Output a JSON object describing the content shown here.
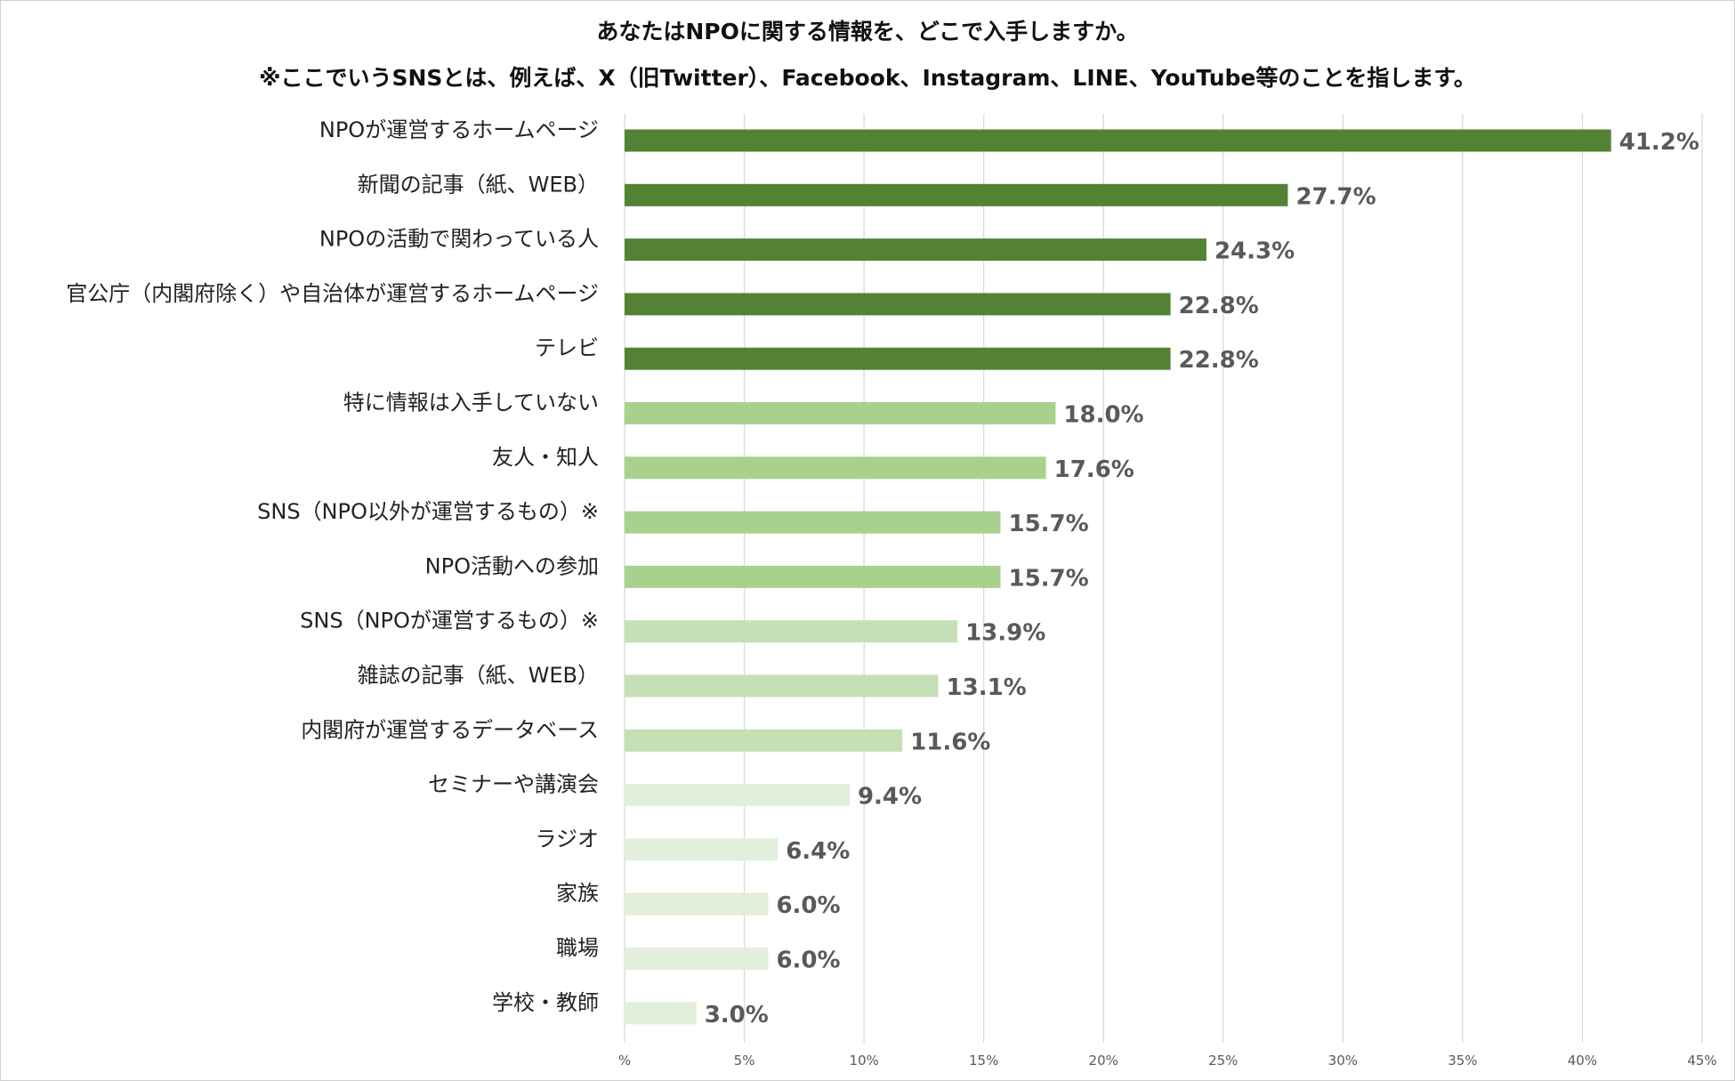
{
  "chart_data": {
    "type": "bar",
    "orientation": "horizontal",
    "title": "あなたはNPOに関する情報を、どこで入手しますか。",
    "subtitle": "※ここでいうSNSとは、例えば、X（旧Twitter）、Facebook、Instagram、LINE、YouTube等のことを指します。",
    "categories": [
      "NPOが運営するホームページ",
      "新聞の記事（紙、WEB）",
      "NPOの活動で関わっている人",
      "官公庁（内閣府除く）や自治体が運営するホームページ",
      "テレビ",
      "特に情報は入手していない",
      "友人・知人",
      "SNS（NPO以外が運営するもの）※",
      "NPO活動への参加",
      "SNS（NPOが運営するもの）※",
      "雑誌の記事（紙、WEB）",
      "内閣府が運営するデータベース",
      "セミナーや講演会",
      "ラジオ",
      "家族",
      "職場",
      "学校・教師"
    ],
    "values": [
      41.2,
      27.7,
      24.3,
      22.8,
      22.8,
      18.0,
      17.6,
      15.7,
      15.7,
      13.9,
      13.1,
      11.6,
      9.4,
      6.4,
      6.0,
      6.0,
      3.0
    ],
    "value_labels": [
      "41.2%",
      "27.7%",
      "24.3%",
      "22.8%",
      "22.8%",
      "18.0%",
      "17.6%",
      "15.7%",
      "15.7%",
      "13.9%",
      "13.1%",
      "11.6%",
      "9.4%",
      "6.4%",
      "6.0%",
      "6.0%",
      "3.0%"
    ],
    "bar_colors": [
      "#548235",
      "#548235",
      "#548235",
      "#548235",
      "#548235",
      "#a9d18e",
      "#a9d18e",
      "#a9d18e",
      "#a9d18e",
      "#c5e0b4",
      "#c5e0b4",
      "#c5e0b4",
      "#e2efda",
      "#e2efda",
      "#e2efda",
      "#e2efda",
      "#e2efda"
    ],
    "xticks": [
      0,
      5,
      10,
      15,
      20,
      25,
      30,
      35,
      40,
      45
    ],
    "xtick_labels": [
      "%",
      "5%",
      "10%",
      "15%",
      "20%",
      "25%",
      "30%",
      "35%",
      "40%",
      "45%"
    ],
    "xlim": [
      0,
      45
    ],
    "grid": true,
    "grid_color": "#d9d9d9",
    "xlabel": "",
    "ylabel": ""
  }
}
